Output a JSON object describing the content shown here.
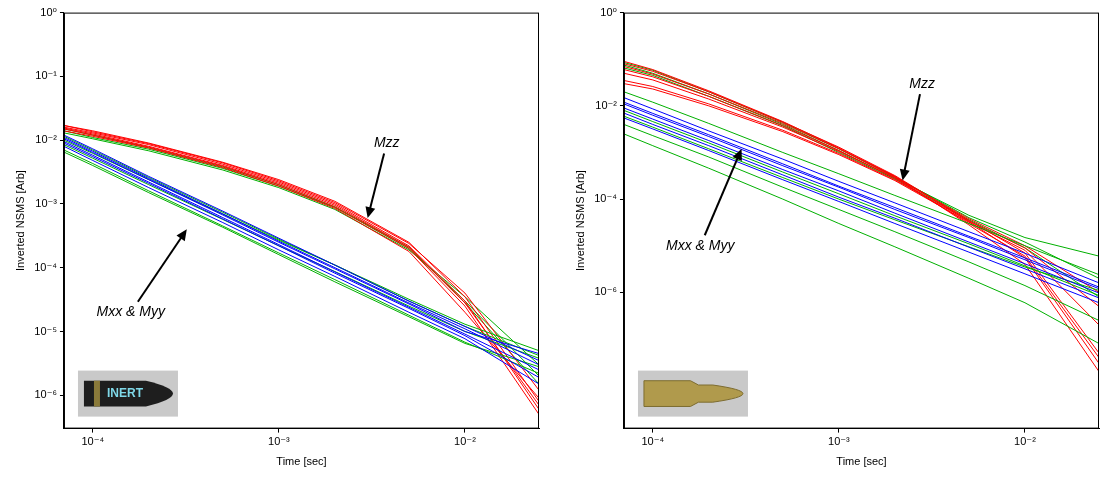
{
  "chart_data": [
    {
      "type": "line",
      "log": true,
      "grid": false,
      "x_label": "Time [sec]",
      "y_label": "Inverted NSMS [Arb]",
      "xlim": [
        7e-05,
        0.025
      ],
      "ylim": [
        3e-07,
        1
      ],
      "xticks": [
        {
          "value": 0.0001,
          "label": "10⁻⁴"
        },
        {
          "value": 0.001,
          "label": "10⁻³"
        },
        {
          "value": 0.01,
          "label": "10⁻²"
        }
      ],
      "yticks": [
        {
          "value": 1,
          "label": "10⁰"
        },
        {
          "value": 0.1,
          "label": "10⁻¹"
        },
        {
          "value": 0.01,
          "label": "10⁻²"
        },
        {
          "value": 0.001,
          "label": "10⁻³"
        },
        {
          "value": 0.0001,
          "label": "10⁻⁴"
        },
        {
          "value": 1e-05,
          "label": "10⁻⁵"
        },
        {
          "value": 1e-06,
          "label": "10⁻⁶"
        }
      ],
      "x": [
        7e-05,
        0.0001,
        0.0002,
        0.0005,
        0.001,
        0.002,
        0.005,
        0.01,
        0.025
      ],
      "series": [
        {
          "color": "#0000ff",
          "values": [
            0.012,
            0.0073,
            0.0027,
            0.00077,
            0.00029,
            0.00011,
            3e-05,
            1.2e-05,
            3.5e-06
          ]
        },
        {
          "color": "#0000ff",
          "values": [
            0.011,
            0.0067,
            0.0025,
            0.0007,
            0.00026,
            0.0001,
            2.8e-05,
            1.1e-05,
            3e-06
          ]
        },
        {
          "color": "#0000ff",
          "values": [
            0.0095,
            0.0058,
            0.0022,
            0.00061,
            0.00023,
            8.6e-05,
            2.4e-05,
            9.1e-06,
            2.5e-06
          ]
        },
        {
          "color": "#0000ff",
          "values": [
            0.009,
            0.0055,
            0.0021,
            0.00058,
            0.00022,
            8.2e-05,
            2.3e-05,
            8.6e-06,
            1.9e-06
          ]
        },
        {
          "color": "#0000ff",
          "values": [
            0.008,
            0.0048,
            0.0018,
            0.00051,
            0.00019,
            7.3e-05,
            2e-05,
            7.7e-06,
            1.5e-06
          ]
        },
        {
          "color": "#0000ff",
          "values": [
            0.0105,
            0.0064,
            0.0024,
            0.00067,
            0.00025,
            9.6e-05,
            2.7e-05,
            1e-05,
            4.5e-06
          ]
        },
        {
          "color": "#00b000",
          "values": [
            0.01,
            0.0062,
            0.0024,
            0.00069,
            0.00027,
            0.00011,
            3.2e-05,
            1.3e-05,
            5e-06
          ]
        },
        {
          "color": "#00b000",
          "values": [
            0.0085,
            0.0052,
            0.002,
            0.00057,
            0.00022,
            8.7e-05,
            2.5e-05,
            1e-05,
            3.8e-06
          ]
        },
        {
          "color": "#00b000",
          "values": [
            0.007,
            0.0043,
            0.0016,
            0.00045,
            0.00017,
            6.5e-05,
            1.8e-05,
            6.8e-06,
            2.2e-06
          ]
        },
        {
          "color": "#00b000",
          "values": [
            0.0065,
            0.004,
            0.0015,
            0.00043,
            0.00016,
            6e-05,
            1.7e-05,
            6.5e-06,
            2.8e-06
          ]
        },
        {
          "color": "#00b000",
          "values": [
            0.0115,
            0.007,
            0.0026,
            0.00074,
            0.00028,
            0.00011,
            3e-05,
            1.2e-05,
            4.2e-06
          ]
        },
        {
          "color": "#ff0000",
          "values": [
            0.017,
            0.014,
            0.009,
            0.0045,
            0.0024,
            0.0011,
            0.00025,
            3.5e-05,
            8e-07
          ]
        },
        {
          "color": "#ff0000",
          "values": [
            0.016,
            0.013,
            0.0085,
            0.0042,
            0.0022,
            0.001,
            0.00022,
            3e-05,
            6e-07
          ]
        },
        {
          "color": "#ff0000",
          "values": [
            0.015,
            0.012,
            0.0078,
            0.0039,
            0.002,
            0.0009,
            0.0002,
            2.5e-05,
            5e-07
          ]
        },
        {
          "color": "#ff0000",
          "values": [
            0.014,
            0.0115,
            0.0075,
            0.0037,
            0.0019,
            0.00085,
            0.00018,
            2e-05,
            9e-07
          ]
        },
        {
          "color": "#ff0000",
          "values": [
            0.017,
            0.0135,
            0.0088,
            0.0044,
            0.0023,
            0.00105,
            0.00024,
            4e-05,
            1.2e-06
          ]
        },
        {
          "color": "#ff0000",
          "values": [
            0.0155,
            0.0125,
            0.008,
            0.004,
            0.0021,
            0.00095,
            0.00021,
            2.8e-05,
            7e-07
          ]
        },
        {
          "color": "#00b000",
          "values": [
            0.014,
            0.011,
            0.0072,
            0.0036,
            0.0019,
            0.00088,
            0.0002,
            3e-05,
            2e-06
          ]
        },
        {
          "color": "#00b000",
          "values": [
            0.013,
            0.0105,
            0.0068,
            0.0034,
            0.0018,
            0.00082,
            0.00019,
            3.5e-05,
            3e-06
          ]
        },
        {
          "color": "#00b000",
          "values": [
            0.015,
            0.012,
            0.0076,
            0.0038,
            0.002,
            0.0009,
            0.00021,
            2.8e-05,
            1.5e-06
          ]
        }
      ],
      "annotations": [
        {
          "text": "Mzz",
          "text_x": 0.0038,
          "text_y": 0.009,
          "x": 0.003,
          "y": 0.0006
        },
        {
          "text": "Mxx & Myy",
          "text_x": 0.00016,
          "text_y": 2e-05,
          "x": 0.00032,
          "y": 0.0004
        }
      ],
      "photo_text": "INERT"
    },
    {
      "type": "line",
      "log": true,
      "grid": false,
      "x_label": "Time [sec]",
      "y_label": "Inverted NSMS [Arb]",
      "xlim": [
        7e-05,
        0.025
      ],
      "ylim": [
        1.2e-09,
        1
      ],
      "xticks": [
        {
          "value": 0.0001,
          "label": "10⁻⁴"
        },
        {
          "value": 0.001,
          "label": "10⁻³"
        },
        {
          "value": 0.01,
          "label": "10⁻²"
        }
      ],
      "yticks": [
        {
          "value": 1,
          "label": "10⁰"
        },
        {
          "value": 0.01,
          "label": "10⁻²"
        },
        {
          "value": 0.0001,
          "label": "10⁻⁴"
        },
        {
          "value": 1e-06,
          "label": "10⁻⁶"
        }
      ],
      "x": [
        7e-05,
        0.0001,
        0.0002,
        0.0005,
        0.001,
        0.002,
        0.005,
        0.01,
        0.025
      ],
      "series": [
        {
          "color": "#0000ff",
          "values": [
            0.012,
            0.0069,
            0.0024,
            0.00057,
            0.00019,
            6.6e-05,
            1.6e-05,
            5.5e-06,
            1.3e-06
          ]
        },
        {
          "color": "#0000ff",
          "values": [
            0.009,
            0.0052,
            0.0018,
            0.00043,
            0.00015,
            5e-05,
            1.2e-05,
            4.1e-06,
            9.7e-07
          ]
        },
        {
          "color": "#0000ff",
          "values": [
            0.007,
            0.004,
            0.0014,
            0.00033,
            0.00011,
            3.9e-05,
            9.3e-06,
            3.2e-06,
            7.6e-07
          ]
        },
        {
          "color": "#0000ff",
          "values": [
            0.015,
            0.0086,
            0.0029,
            0.00072,
            0.00024,
            8.3e-05,
            2e-05,
            6.9e-06,
            1.6e-06
          ]
        },
        {
          "color": "#0000ff",
          "values": [
            0.0055,
            0.0032,
            0.0011,
            0.00026,
            8.9e-05,
            3e-05,
            7.3e-06,
            2.5e-06,
            6e-07
          ]
        },
        {
          "color": "#0000ff",
          "values": [
            0.011,
            0.0063,
            0.0022,
            0.00052,
            0.00018,
            6e-05,
            1.5e-05,
            5e-06,
            1.2e-06
          ]
        },
        {
          "color": "#00b000",
          "values": [
            0.02,
            0.012,
            0.0042,
            0.001,
            0.00035,
            0.00012,
            3e-05,
            1e-05,
            2.4e-06
          ]
        },
        {
          "color": "#00b000",
          "values": [
            0.008,
            0.0046,
            0.0016,
            0.00038,
            0.00013,
            4.4e-05,
            1.1e-05,
            3.7e-06,
            8.6e-07
          ]
        },
        {
          "color": "#00b000",
          "values": [
            0.004,
            0.0023,
            0.0008,
            0.00018,
            6e-05,
            2e-05,
            4.5e-06,
            1.4e-06,
            2.5e-07
          ]
        },
        {
          "color": "#00b000",
          "values": [
            0.0025,
            0.0014,
            0.00046,
            0.0001,
            3e-05,
            9.5e-06,
            2e-06,
            6e-07,
            8e-08
          ]
        },
        {
          "color": "#00b000",
          "values": [
            0.006,
            0.0035,
            0.0012,
            0.00029,
            0.0001,
            3.6e-05,
            9.5e-06,
            3.5e-06,
            1.1e-06
          ]
        },
        {
          "color": "#ff0000",
          "values": [
            0.08,
            0.055,
            0.02,
            0.0045,
            0.0013,
            0.00032,
            3.5e-05,
            7e-06,
            5e-08
          ]
        },
        {
          "color": "#ff0000",
          "values": [
            0.06,
            0.042,
            0.016,
            0.0038,
            0.0011,
            0.00028,
            3e-05,
            6e-06,
            4e-08
          ]
        },
        {
          "color": "#ff0000",
          "values": [
            0.03,
            0.023,
            0.01,
            0.0028,
            0.0009,
            0.00025,
            3.2e-05,
            8e-06,
            2e-07
          ]
        },
        {
          "color": "#ff0000",
          "values": [
            0.035,
            0.026,
            0.011,
            0.003,
            0.00095,
            0.00026,
            3.4e-05,
            9e-06,
            5e-07
          ]
        },
        {
          "color": "#ff0000",
          "values": [
            0.07,
            0.048,
            0.018,
            0.0042,
            0.0012,
            0.0003,
            2.8e-05,
            4e-06,
            2e-08
          ]
        },
        {
          "color": "#ff0000",
          "values": [
            0.05,
            0.036,
            0.014,
            0.0035,
            0.00105,
            0.00029,
            3.8e-05,
            1e-05,
            1e-06
          ]
        },
        {
          "color": "#ff0000",
          "values": [
            0.09,
            0.06,
            0.021,
            0.0046,
            0.00125,
            0.00031,
            3.3e-05,
            5.5e-06,
            3e-08
          ]
        },
        {
          "color": "#00b000",
          "values": [
            0.085,
            0.058,
            0.02,
            0.0044,
            0.0012,
            0.0003,
            4e-05,
            1.2e-05,
            2e-06
          ]
        },
        {
          "color": "#00b000",
          "values": [
            0.075,
            0.05,
            0.018,
            0.004,
            0.0011,
            0.00028,
            4.5e-05,
            1.5e-05,
            6e-06
          ]
        },
        {
          "color": "#00b000",
          "values": [
            0.065,
            0.045,
            0.016,
            0.0037,
            0.001,
            0.00027,
            3.6e-05,
            9e-06,
            8e-07
          ]
        }
      ],
      "annotations": [
        {
          "text": "Mzz",
          "text_x": 0.0028,
          "text_y": 0.03,
          "x": 0.0022,
          "y": 0.00025
        },
        {
          "text": "Mxx & Myy",
          "text_x": 0.00018,
          "text_y": 1e-05,
          "x": 0.0003,
          "y": 0.0012
        }
      ]
    }
  ]
}
